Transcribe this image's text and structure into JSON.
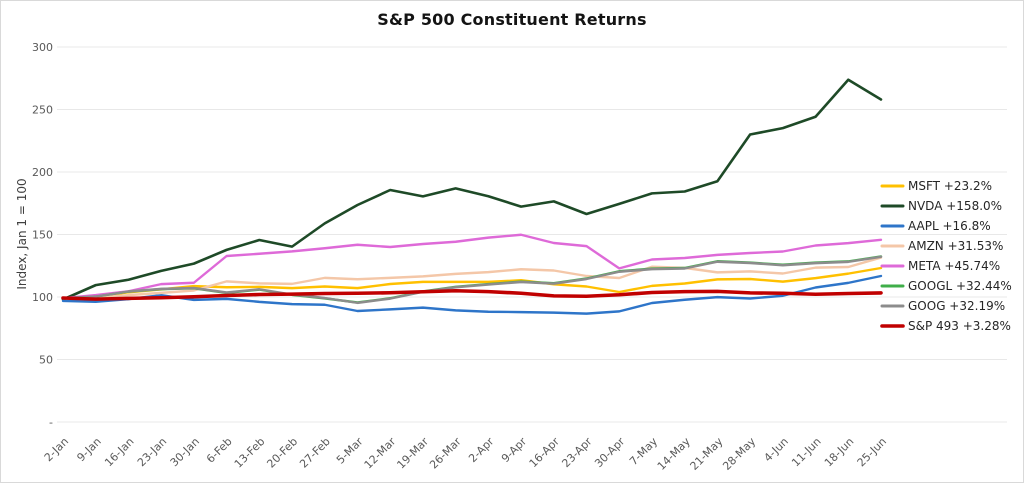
{
  "chart_data": {
    "type": "line",
    "title": "S&P 500 Constituent Returns",
    "xlabel": "",
    "ylabel": "Index, Jan 1 = 100",
    "ylim": [
      0,
      300
    ],
    "grid": "horizontal",
    "legend_position": "right",
    "y_ticks": [
      {
        "value": 300,
        "label": "300"
      },
      {
        "value": 250,
        "label": "250"
      },
      {
        "value": 200,
        "label": "200"
      },
      {
        "value": 150,
        "label": "150"
      },
      {
        "value": 100,
        "label": "100"
      },
      {
        "value": 50,
        "label": "50"
      },
      {
        "value": 0,
        "label": "-"
      }
    ],
    "x": [
      "2-Jan",
      "9-Jan",
      "16-Jan",
      "23-Jan",
      "30-Jan",
      "6-Feb",
      "13-Feb",
      "20-Feb",
      "27-Feb",
      "5-Mar",
      "12-Mar",
      "19-Mar",
      "26-Mar",
      "2-Apr",
      "9-Apr",
      "16-Apr",
      "23-Apr",
      "30-Apr",
      "7-May",
      "14-May",
      "21-May",
      "28-May",
      "4-Jun",
      "11-Jun",
      "18-Jun",
      "25-Jun"
    ],
    "series": [
      {
        "name": "MSFT",
        "return_label": "+23.2%",
        "legend_label": "MSFT +23.2%",
        "color": "#FFC000",
        "line_width": 2.4,
        "values": [
          99.0,
          100.0,
          103.8,
          106.1,
          108.7,
          107.8,
          108.1,
          107.1,
          108.4,
          107.1,
          110.4,
          112.1,
          112.1,
          112.1,
          113.4,
          110.2,
          108.4,
          104.0,
          108.9,
          110.8,
          114.1,
          114.4,
          112.3,
          115.1,
          118.7,
          123.2
        ]
      },
      {
        "name": "NVDA",
        "return_label": "+158.0%",
        "legend_label": "NVDA +158.0%",
        "color": "#1E4A27",
        "line_width": 2.6,
        "values": [
          98.0,
          109.5,
          113.8,
          120.9,
          126.7,
          137.7,
          145.6,
          140.3,
          158.9,
          173.6,
          185.6,
          180.5,
          186.9,
          180.6,
          172.3,
          176.5,
          166.4,
          174.5,
          182.9,
          184.4,
          192.6,
          230.0,
          235.1,
          244.2,
          273.8,
          258.0
        ]
      },
      {
        "name": "AAPL",
        "return_label": "+16.8%",
        "legend_label": "AAPL +16.8%",
        "color": "#2E75C9",
        "line_width": 2.4,
        "values": [
          96.9,
          96.2,
          98.3,
          101.4,
          97.7,
          98.5,
          96.1,
          94.3,
          93.8,
          88.8,
          90.1,
          91.5,
          89.3,
          88.2,
          87.9,
          87.5,
          86.7,
          88.5,
          95.2,
          97.8,
          99.9,
          98.8,
          101.0,
          107.6,
          111.3,
          116.8
        ]
      },
      {
        "name": "AMZN",
        "return_label": "+31.53%",
        "legend_label": "AMZN +31.53%",
        "color": "#F4C7A8",
        "line_width": 2.4,
        "values": [
          98.9,
          99.6,
          101.5,
          103.3,
          105.2,
          112.5,
          110.9,
          110.5,
          115.3,
          114.2,
          115.3,
          116.5,
          118.5,
          119.9,
          122.2,
          121.2,
          116.8,
          115.2,
          124.2,
          123.3,
          119.7,
          120.5,
          118.8,
          123.5,
          124.0,
          131.53
        ]
      },
      {
        "name": "META",
        "return_label": "+45.74%",
        "legend_label": "META +45.74%",
        "color": "#DE6AD8",
        "line_width": 2.4,
        "values": [
          99.0,
          101.5,
          104.6,
          110.3,
          111.4,
          132.8,
          134.6,
          136.5,
          139.0,
          141.8,
          140.0,
          142.4,
          144.2,
          147.5,
          149.8,
          143.2,
          140.7,
          122.9,
          130.0,
          131.2,
          133.7,
          135.2,
          136.4,
          141.2,
          143.1,
          145.74
        ]
      },
      {
        "name": "GOOGL",
        "return_label": "+32.44%",
        "legend_label": "GOOGL +32.44%",
        "color": "#3FAE49",
        "line_width": 2.4,
        "values": [
          98.9,
          100.3,
          104.3,
          106.3,
          107.0,
          103.3,
          105.9,
          101.7,
          98.9,
          95.6,
          99.0,
          104.4,
          108.1,
          110.3,
          112.3,
          111.0,
          114.8,
          120.6,
          122.7,
          123.2,
          128.6,
          127.5,
          125.8,
          127.5,
          128.5,
          132.44
        ]
      },
      {
        "name": "GOOG",
        "return_label": "+32.19%",
        "legend_label": "GOOG +32.19%",
        "color": "#8C8C8C",
        "line_width": 2.4,
        "values": [
          99.0,
          100.4,
          104.4,
          106.5,
          107.2,
          103.6,
          106.2,
          102.0,
          99.2,
          95.3,
          98.7,
          104.1,
          107.8,
          110.0,
          112.0,
          110.7,
          114.4,
          120.2,
          122.3,
          122.8,
          128.2,
          127.2,
          125.4,
          127.1,
          128.1,
          132.19
        ]
      },
      {
        "name": "S&P 493",
        "return_label": "+3.28%",
        "legend_label": "S&P 493 +3.28%",
        "color": "#C00000",
        "line_width": 3.6,
        "values": [
          99.2,
          98.3,
          98.9,
          99.4,
          100.2,
          101.2,
          102.0,
          102.3,
          102.8,
          103.0,
          103.4,
          104.2,
          105.0,
          104.3,
          103.0,
          100.9,
          100.6,
          101.8,
          103.6,
          104.3,
          104.5,
          103.3,
          103.0,
          102.2,
          102.8,
          103.28
        ]
      }
    ]
  }
}
